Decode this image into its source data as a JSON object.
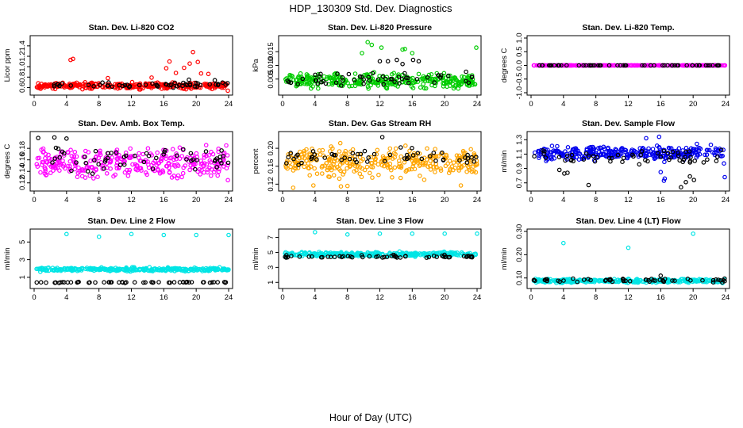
{
  "page": {
    "title": "HDP_130309  Std. Dev. Diagnostics",
    "xlabel": "Hour of Day (UTC)"
  },
  "chart_data": [
    {
      "type": "scatter",
      "title": "Stan. Dev. Li-820 CO2",
      "ylabel": "Licor ppm",
      "xlim": [
        0,
        24
      ],
      "ylim": [
        0.5,
        1.55
      ],
      "xticks": [
        0,
        4,
        8,
        12,
        16,
        20,
        24
      ],
      "yticks": [
        0.6,
        0.8,
        1.0,
        1.2,
        1.4
      ],
      "ytick_labels": [
        "0.6",
        "0.8",
        "1.0",
        "1.2",
        "1.4"
      ],
      "series": [
        {
          "color": "#ff0000",
          "band": [
            0.55,
            0.72
          ],
          "outliers": [
            [
              4.5,
              1.13
            ],
            [
              4.8,
              1.15
            ],
            [
              16.3,
              0.97
            ],
            [
              16.7,
              1.1
            ],
            [
              17.5,
              0.88
            ],
            [
              18.5,
              0.98
            ],
            [
              19.2,
              1.06
            ],
            [
              19.6,
              1.28
            ],
            [
              20.2,
              1.09
            ],
            [
              20.6,
              0.87
            ],
            [
              21.5,
              0.86
            ],
            [
              23.9,
              0.54
            ],
            [
              9.1,
              0.78
            ],
            [
              14.5,
              0.79
            ]
          ]
        },
        {
          "color": "#000000",
          "band": [
            0.58,
            0.72
          ],
          "outliers": [
            [
              19.1,
              0.75
            ],
            [
              22.3,
              0.74
            ]
          ]
        }
      ]
    },
    {
      "type": "scatter",
      "title": "Stan. Dev. Li-820 Pressure",
      "ylabel": "kPa",
      "xlim": [
        0,
        24
      ],
      "ylim": [
        0.0,
        0.02
      ],
      "xticks": [
        0,
        4,
        8,
        12,
        16,
        20,
        24
      ],
      "yticks": [
        0.005,
        0.01,
        0.015
      ],
      "ytick_labels": [
        "0.005",
        "0.010",
        "0.015"
      ],
      "series": [
        {
          "color": "#00cc00",
          "band": [
            0.0005,
            0.008
          ],
          "outliers": [
            [
              10.5,
              0.0185
            ],
            [
              11.0,
              0.0175
            ],
            [
              12.2,
              0.0165
            ],
            [
              14.8,
              0.0158
            ],
            [
              15.1,
              0.016
            ],
            [
              23.9,
              0.0165
            ],
            [
              16.0,
              0.0145
            ],
            [
              9.8,
              0.0145
            ]
          ]
        },
        {
          "color": "#000000",
          "band": [
            0.001,
            0.009
          ],
          "outliers": [
            [
              12.0,
              0.0115
            ],
            [
              13.0,
              0.0115
            ],
            [
              14.1,
              0.012
            ],
            [
              14.8,
              0.0105
            ],
            [
              16.1,
              0.012
            ],
            [
              16.8,
              0.0115
            ]
          ]
        }
      ]
    },
    {
      "type": "scatter",
      "title": "Stan. Dev. Li-820 Temp.",
      "ylabel": "degrees C",
      "xlim": [
        0,
        24
      ],
      "ylim": [
        -1.0,
        1.0
      ],
      "xticks": [
        0,
        4,
        8,
        12,
        16,
        20,
        24
      ],
      "yticks": [
        -1.0,
        -0.5,
        0.0,
        0.5,
        1.0
      ],
      "ytick_labels": [
        "-1.0",
        "-0.5",
        "0.0",
        "0.5",
        "1.0"
      ],
      "series": [
        {
          "color": "#ff00ff",
          "band": [
            0.0,
            0.0
          ],
          "outliers": []
        },
        {
          "color": "#000000",
          "band": [
            0.0,
            0.0
          ],
          "outliers": []
        }
      ]
    },
    {
      "type": "scatter",
      "title": "Stan. Dev. Amb. Box Temp.",
      "ylabel": "degrees C",
      "xlim": [
        0,
        24
      ],
      "ylim": [
        0.11,
        0.205
      ],
      "xticks": [
        0,
        4,
        8,
        12,
        16,
        20,
        24
      ],
      "yticks": [
        0.12,
        0.14,
        0.16,
        0.18
      ],
      "ytick_labels": [
        "0.12",
        "0.14",
        "0.16",
        "0.18"
      ],
      "series": [
        {
          "color": "#ff00ff",
          "band": [
            0.118,
            0.192
          ],
          "outliers": []
        },
        {
          "color": "#000000",
          "band": [
            0.125,
            0.2
          ],
          "outliers": [
            [
              0.5,
              0.198
            ],
            [
              2.5,
              0.199
            ],
            [
              4.0,
              0.197
            ]
          ]
        }
      ]
    },
    {
      "type": "scatter",
      "title": "Stan. Dev. Gas Stream RH",
      "ylabel": "percent",
      "xlim": [
        0,
        24
      ],
      "ylim": [
        0.11,
        0.232
      ],
      "xticks": [
        0,
        4,
        8,
        12,
        16,
        20,
        24
      ],
      "yticks": [
        0.12,
        0.16,
        0.2
      ],
      "ytick_labels": [
        "0.12",
        "0.16",
        "0.20"
      ],
      "series": [
        {
          "color": "#ffa500",
          "band": [
            0.125,
            0.215
          ],
          "outliers": [
            [
              1.3,
              0.112
            ],
            [
              3.8,
              0.117
            ],
            [
              7.2,
              0.115
            ],
            [
              8.0,
              0.116
            ],
            [
              22.0,
              0.117
            ]
          ]
        },
        {
          "color": "#000000",
          "band": [
            0.15,
            0.21
          ],
          "outliers": [
            [
              12.3,
              0.225
            ]
          ]
        }
      ]
    },
    {
      "type": "scatter",
      "title": "Stan. Dev. Sample Flow",
      "ylabel": "ml/min",
      "xlim": [
        0,
        24
      ],
      "ylim": [
        0.62,
        1.38
      ],
      "xticks": [
        0,
        4,
        8,
        12,
        16,
        20,
        24
      ],
      "yticks": [
        0.7,
        0.9,
        1.1,
        1.3
      ],
      "ytick_labels": [
        "0.7",
        "0.9",
        "1.1",
        "1.3"
      ],
      "series": [
        {
          "color": "#0000ee",
          "band": [
            0.98,
            1.25
          ],
          "outliers": [
            [
              14.2,
              1.32
            ],
            [
              15.8,
              1.34
            ],
            [
              16.0,
              0.85
            ],
            [
              16.4,
              0.73
            ],
            [
              16.5,
              0.76
            ],
            [
              23.9,
              0.78
            ],
            [
              23.8,
              0.97
            ]
          ]
        },
        {
          "color": "#000000",
          "band": [
            0.92,
            1.2
          ],
          "outliers": [
            [
              3.5,
              0.88
            ],
            [
              4.1,
              0.83
            ],
            [
              4.5,
              0.84
            ],
            [
              7.1,
              0.67
            ],
            [
              18.5,
              0.64
            ],
            [
              19.1,
              0.71
            ],
            [
              19.6,
              0.79
            ],
            [
              20.1,
              0.74
            ]
          ]
        }
      ]
    },
    {
      "type": "scatter",
      "title": "Stan. Dev. Line 2 Flow",
      "ylabel": "ml/min",
      "xlim": [
        0,
        24
      ],
      "ylim": [
        0.0,
        6.2
      ],
      "xticks": [
        0,
        4,
        8,
        12,
        16,
        20,
        24
      ],
      "yticks": [
        1,
        3,
        5
      ],
      "ytick_labels": [
        "1",
        "3",
        "5"
      ],
      "series": [
        {
          "color": "#00e5e5",
          "band": [
            1.6,
            2.2
          ],
          "outliers": [
            [
              4.0,
              5.9
            ],
            [
              8.0,
              5.6
            ],
            [
              12.0,
              5.9
            ],
            [
              16.0,
              5.8
            ],
            [
              20.0,
              5.8
            ],
            [
              24.0,
              5.8
            ]
          ]
        },
        {
          "color": "#000000",
          "band": [
            0.35,
            0.5
          ],
          "outliers": []
        }
      ]
    },
    {
      "type": "scatter",
      "title": "Stan. Dev. Line 3 Flow",
      "ylabel": "ml/min",
      "xlim": [
        0,
        24
      ],
      "ylim": [
        0.5,
        7.8
      ],
      "xticks": [
        0,
        4,
        8,
        12,
        16,
        20,
        24
      ],
      "yticks": [
        1,
        3,
        5,
        7
      ],
      "ytick_labels": [
        "1",
        "3",
        "5",
        "7"
      ],
      "series": [
        {
          "color": "#00e5e5",
          "band": [
            4.3,
            5.2
          ],
          "outliers": [
            [
              4.0,
              7.7
            ],
            [
              8.0,
              7.4
            ],
            [
              12.0,
              7.5
            ],
            [
              16.0,
              7.5
            ],
            [
              20.0,
              7.5
            ],
            [
              24.0,
              7.5
            ]
          ]
        },
        {
          "color": "#000000",
          "band": [
            4.2,
            4.7
          ],
          "outliers": []
        }
      ]
    },
    {
      "type": "scatter",
      "title": "Stan. Dev. Line 4 (LT) Flow",
      "ylabel": "ml/min",
      "xlim": [
        0,
        24
      ],
      "ylim": [
        0.065,
        0.3
      ],
      "xticks": [
        0,
        4,
        8,
        12,
        16,
        20,
        24
      ],
      "yticks": [
        0.1,
        0.2,
        0.3
      ],
      "ytick_labels": [
        "0.10",
        "0.20",
        "0.30"
      ],
      "series": [
        {
          "color": "#00e5e5",
          "band": [
            0.075,
            0.1
          ],
          "outliers": [
            [
              4.0,
              0.25
            ],
            [
              12.0,
              0.23
            ],
            [
              20.0,
              0.29
            ]
          ]
        },
        {
          "color": "#000000",
          "band": [
            0.08,
            0.1
          ],
          "outliers": [
            [
              16.0,
              0.11
            ]
          ]
        }
      ]
    }
  ]
}
